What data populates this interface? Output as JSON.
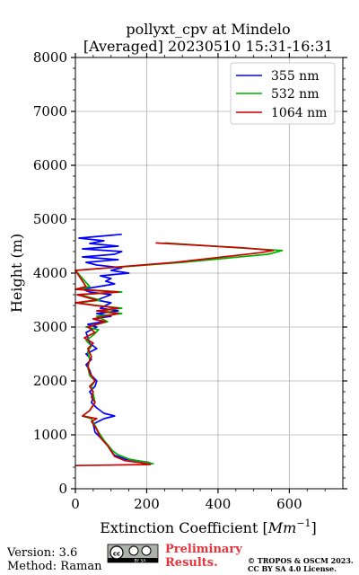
{
  "chart_data": {
    "type": "line",
    "title": "pollyxt_cpv at Mindelo",
    "subtitle": "[Averaged] 20230510 15:31-16:31",
    "xlabel": "Extinction Coefficient [",
    "xlabel_unit": "Mm",
    "xlabel_unit_exp": "−1",
    "xlabel_close": "]",
    "ylabel": "Height (m)",
    "xlim": [
      0,
      750
    ],
    "ylim": [
      0,
      8000
    ],
    "xticks": [
      0,
      200,
      400,
      600
    ],
    "yticks": [
      0,
      1000,
      2000,
      3000,
      4000,
      5000,
      6000,
      7000,
      8000
    ],
    "grid": true,
    "legend_position": "top-right",
    "series": [
      {
        "name": "355 nm",
        "color": "#0000ff",
        "points": [
          [
            215,
            460
          ],
          [
            205,
            490
          ],
          [
            140,
            550
          ],
          [
            110,
            620
          ],
          [
            100,
            700
          ],
          [
            95,
            780
          ],
          [
            85,
            850
          ],
          [
            70,
            950
          ],
          [
            55,
            1050
          ],
          [
            50,
            1200
          ],
          [
            80,
            1300
          ],
          [
            110,
            1350
          ],
          [
            80,
            1400
          ],
          [
            60,
            1500
          ],
          [
            45,
            1600
          ],
          [
            50,
            1700
          ],
          [
            40,
            1800
          ],
          [
            55,
            1900
          ],
          [
            60,
            2000
          ],
          [
            45,
            2100
          ],
          [
            40,
            2200
          ],
          [
            30,
            2300
          ],
          [
            45,
            2400
          ],
          [
            30,
            2500
          ],
          [
            60,
            2600
          ],
          [
            40,
            2700
          ],
          [
            35,
            2800
          ],
          [
            30,
            2900
          ],
          [
            60,
            3000
          ],
          [
            35,
            3050
          ],
          [
            80,
            3100
          ],
          [
            50,
            3150
          ],
          [
            100,
            3200
          ],
          [
            60,
            3250
          ],
          [
            120,
            3300
          ],
          [
            70,
            3350
          ],
          [
            100,
            3450
          ],
          [
            60,
            3500
          ],
          [
            100,
            3600
          ],
          [
            40,
            3650
          ],
          [
            20,
            3700
          ],
          [
            110,
            3800
          ],
          [
            85,
            3850
          ],
          [
            100,
            3900
          ],
          [
            70,
            3950
          ],
          [
            150,
            4000
          ],
          [
            100,
            4050
          ],
          [
            130,
            4100
          ],
          [
            60,
            4150
          ],
          [
            30,
            4200
          ],
          [
            120,
            4250
          ],
          [
            20,
            4300
          ],
          [
            110,
            4350
          ],
          [
            130,
            4400
          ],
          [
            20,
            4450
          ],
          [
            120,
            4500
          ],
          [
            40,
            4550
          ],
          [
            80,
            4600
          ],
          [
            10,
            4650
          ],
          [
            130,
            4720
          ]
        ]
      },
      {
        "name": "532 nm",
        "color": "#00b000",
        "points": [
          [
            220,
            460
          ],
          [
            200,
            490
          ],
          [
            150,
            550
          ],
          [
            120,
            630
          ],
          [
            105,
            700
          ],
          [
            95,
            780
          ],
          [
            80,
            900
          ],
          [
            65,
            1050
          ],
          [
            45,
            1300
          ],
          [
            20,
            1350
          ],
          [
            40,
            1450
          ],
          [
            55,
            1600
          ],
          [
            50,
            1750
          ],
          [
            45,
            1900
          ],
          [
            55,
            2000
          ],
          [
            40,
            2100
          ],
          [
            35,
            2250
          ],
          [
            40,
            2400
          ],
          [
            35,
            2550
          ],
          [
            45,
            2650
          ],
          [
            30,
            2750
          ],
          [
            50,
            2850
          ],
          [
            65,
            2950
          ],
          [
            30,
            3000
          ],
          [
            90,
            3100
          ],
          [
            60,
            3200
          ],
          [
            130,
            3250
          ],
          [
            70,
            3300
          ],
          [
            130,
            3350
          ],
          [
            60,
            3400
          ],
          [
            5,
            3450
          ],
          [
            70,
            3500
          ],
          [
            10,
            3600
          ],
          [
            130,
            3650
          ],
          [
            10,
            3700
          ],
          [
            40,
            3750
          ],
          [
            0,
            4050
          ],
          [
            300,
            4200
          ],
          [
            540,
            4350
          ],
          [
            580,
            4420
          ],
          [
            480,
            4460
          ],
          [
            250,
            4560
          ]
        ]
      },
      {
        "name": "1064 nm",
        "color": "#cc0000",
        "points": [
          [
            0,
            430
          ],
          [
            210,
            450
          ],
          [
            185,
            480
          ],
          [
            140,
            520
          ],
          [
            110,
            600
          ],
          [
            100,
            700
          ],
          [
            90,
            800
          ],
          [
            70,
            950
          ],
          [
            60,
            1100
          ],
          [
            45,
            1250
          ],
          [
            60,
            1300
          ],
          [
            20,
            1350
          ],
          [
            40,
            1450
          ],
          [
            55,
            1600
          ],
          [
            45,
            1700
          ],
          [
            50,
            1800
          ],
          [
            40,
            1900
          ],
          [
            55,
            2000
          ],
          [
            40,
            2150
          ],
          [
            35,
            2300
          ],
          [
            45,
            2450
          ],
          [
            35,
            2600
          ],
          [
            50,
            2700
          ],
          [
            25,
            2800
          ],
          [
            55,
            2900
          ],
          [
            35,
            3000
          ],
          [
            85,
            3100
          ],
          [
            50,
            3150
          ],
          [
            120,
            3250
          ],
          [
            60,
            3300
          ],
          [
            120,
            3350
          ],
          [
            55,
            3400
          ],
          [
            0,
            3450
          ],
          [
            60,
            3500
          ],
          [
            5,
            3600
          ],
          [
            120,
            3650
          ],
          [
            0,
            3700
          ],
          [
            30,
            3750
          ],
          [
            0,
            4050
          ],
          [
            280,
            4200
          ],
          [
            520,
            4380
          ],
          [
            555,
            4420
          ],
          [
            470,
            4470
          ],
          [
            225,
            4560
          ]
        ]
      }
    ]
  },
  "footer": {
    "version": "Version: 3.6",
    "method": "Method: Raman",
    "license_badge": "cc-by-sa-badge-icon",
    "license_badge_text": "BY  SA",
    "preliminary_line1": "Preliminary",
    "preliminary_line2": "Results.",
    "copyright_line1": "© TROPOS & OSCM 2023.",
    "copyright_line2": "CC BY SA 4.0 License."
  }
}
